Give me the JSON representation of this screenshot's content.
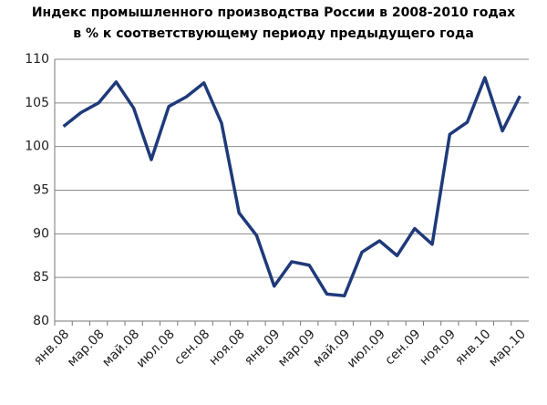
{
  "chart_data": {
    "type": "line",
    "title": "Индекс промышленного производства России в 2008-2010 годах",
    "subtitle": "в % к соответствующему периоду предыдущего года",
    "categories": [
      "янв.08",
      null,
      "мар.08",
      null,
      "май.08",
      null,
      "июл.08",
      null,
      "сен.08",
      null,
      "ноя.08",
      null,
      "янв.09",
      null,
      "мар.09",
      null,
      "май.09",
      null,
      "июл.09",
      null,
      "сен.09",
      null,
      "ноя.09",
      null,
      "янв.10",
      null,
      "мар.10"
    ],
    "values": [
      102.3,
      103.9,
      105.0,
      107.4,
      104.4,
      98.5,
      104.6,
      105.7,
      107.3,
      102.7,
      92.4,
      89.8,
      84.0,
      86.8,
      86.4,
      83.1,
      82.9,
      87.9,
      89.2,
      87.5,
      90.6,
      88.8,
      101.4,
      102.8,
      107.9,
      101.8,
      105.8
    ],
    "color": "#1f3a7a",
    "ylim": [
      80,
      110
    ],
    "yticks": [
      80,
      85,
      90,
      95,
      100,
      105,
      110
    ],
    "grid": true
  }
}
